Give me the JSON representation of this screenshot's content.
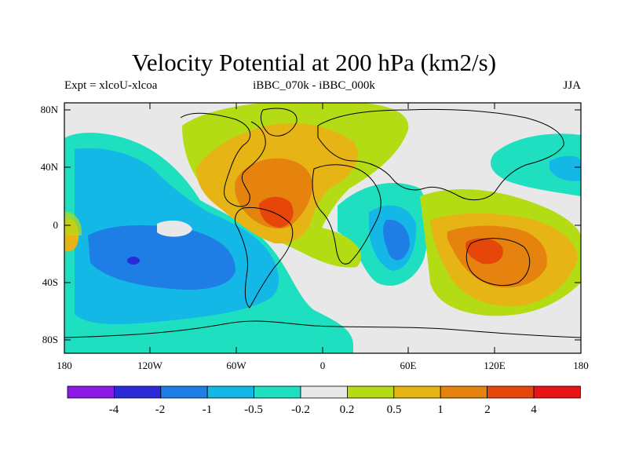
{
  "title": "Velocity Potential at 200 hPa (km2/s)",
  "subtitle_left": "Expt = xlcoU-xlcoa",
  "subtitle_center": "iBBC_070k - iBBC_000k",
  "subtitle_right": "JJA",
  "lat_ticks": [
    "80N",
    "40N",
    "0",
    "40S",
    "80S"
  ],
  "lon_ticks": [
    "180",
    "120W",
    "60W",
    "0",
    "60E",
    "120E",
    "180"
  ],
  "colorbar": {
    "colors": [
      "#8a1ae6",
      "#2a2ad8",
      "#1e7ee6",
      "#14b8e6",
      "#1ee0c0",
      "#e8e8e8",
      "#b4dc14",
      "#e6b414",
      "#e6820e",
      "#e6460a",
      "#e61414"
    ],
    "labels": [
      "-4",
      "-2",
      "-1",
      "-0.5",
      "-0.2",
      "0.2",
      "0.5",
      "1",
      "2",
      "4"
    ]
  }
}
